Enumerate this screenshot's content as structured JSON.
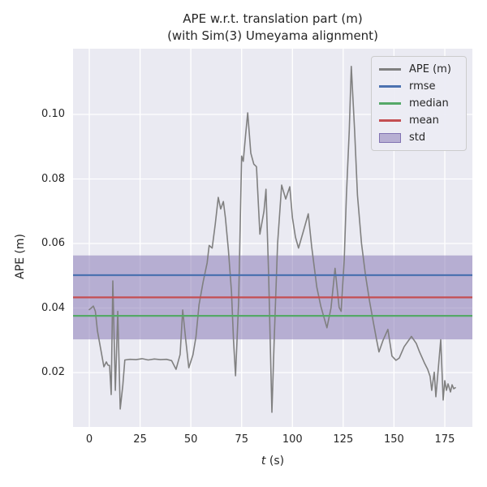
{
  "chart_data": {
    "type": "line",
    "title_line1": "APE w.r.t. translation part (m)",
    "title_line2": "(with Sim(3) Umeyama alignment)",
    "xlabel": "t (s)",
    "xlabel_parts": [
      "t",
      " (s)"
    ],
    "ylabel": "APE (m)",
    "xlim": [
      -8.0,
      188.6
    ],
    "ylim": [
      0.00315,
      0.12038
    ],
    "xticks": [
      0,
      25,
      50,
      75,
      100,
      125,
      150,
      175
    ],
    "xtick_labels": [
      "0",
      "25",
      "50",
      "75",
      "100",
      "125",
      "150",
      "175"
    ],
    "yticks": [
      0.02,
      0.04,
      0.06,
      0.08,
      0.1
    ],
    "ytick_labels": [
      "0.02",
      "0.04",
      "0.06",
      "0.08",
      "0.10"
    ],
    "grid": true,
    "legend_position": "upper right",
    "colors": {
      "ape_line": "#808080",
      "rmse": "#4c72b0",
      "median": "#55a868",
      "mean": "#c44e52",
      "std_band": "#8172b2",
      "axes_background": "#eaeaf2",
      "grid": "#ffffff"
    },
    "stats": {
      "rmse": 0.0502,
      "median": 0.0376,
      "mean": 0.0433,
      "std": 0.013
    },
    "stat_lines": [
      {
        "name": "rmse",
        "value": 0.0502,
        "color": "#4c72b0"
      },
      {
        "name": "median",
        "value": 0.0376,
        "color": "#55a868"
      },
      {
        "name": "mean",
        "value": 0.0433,
        "color": "#c44e52"
      }
    ],
    "std_band": {
      "lower": 0.0303,
      "upper": 0.0563,
      "color": "#8172b2",
      "opacity": 0.5
    },
    "legend": [
      {
        "label": "APE (m)",
        "type": "line",
        "color": "#808080"
      },
      {
        "label": "rmse",
        "type": "line",
        "color": "#4c72b0"
      },
      {
        "label": "median",
        "type": "line",
        "color": "#55a868"
      },
      {
        "label": "mean",
        "type": "line",
        "color": "#c44e52"
      },
      {
        "label": "std",
        "type": "patch",
        "color": "#8172b2"
      }
    ],
    "series": [
      {
        "name": "APE (m)",
        "color": "#808080",
        "points": [
          [
            0,
            0.0395
          ],
          [
            1,
            0.04
          ],
          [
            2,
            0.0406
          ],
          [
            3,
            0.039
          ],
          [
            4,
            0.033
          ],
          [
            5,
            0.0295
          ],
          [
            6,
            0.026
          ],
          [
            7.2,
            0.0218
          ],
          [
            8.4,
            0.0233
          ],
          [
            9.2,
            0.0223
          ],
          [
            10,
            0.0222
          ],
          [
            10.8,
            0.0132
          ],
          [
            11.6,
            0.0484
          ],
          [
            12.8,
            0.0145
          ],
          [
            14,
            0.039
          ],
          [
            15.2,
            0.0087
          ],
          [
            16.5,
            0.016
          ],
          [
            17.5,
            0.0239
          ],
          [
            20,
            0.0241
          ],
          [
            23,
            0.024
          ],
          [
            26,
            0.0243
          ],
          [
            29,
            0.0239
          ],
          [
            32,
            0.0242
          ],
          [
            35,
            0.024
          ],
          [
            38,
            0.0241
          ],
          [
            40.5,
            0.0237
          ],
          [
            42.7,
            0.021
          ],
          [
            44.7,
            0.0256
          ],
          [
            46,
            0.0394
          ],
          [
            47.5,
            0.03
          ],
          [
            49,
            0.0215
          ],
          [
            51,
            0.0255
          ],
          [
            52.5,
            0.031
          ],
          [
            54,
            0.041
          ],
          [
            56,
            0.048
          ],
          [
            58,
            0.054
          ],
          [
            59,
            0.0594
          ],
          [
            60.5,
            0.0586
          ],
          [
            62,
            0.066
          ],
          [
            63.5,
            0.0743
          ],
          [
            64.7,
            0.0707
          ],
          [
            66,
            0.073
          ],
          [
            67,
            0.068
          ],
          [
            68.5,
            0.058
          ],
          [
            70,
            0.045
          ],
          [
            71,
            0.03
          ],
          [
            72,
            0.019
          ],
          [
            73.5,
            0.042
          ],
          [
            75,
            0.0871
          ],
          [
            75.8,
            0.0855
          ],
          [
            77,
            0.094
          ],
          [
            78,
            0.1005
          ],
          [
            79.5,
            0.088
          ],
          [
            81,
            0.0846
          ],
          [
            82.3,
            0.0838
          ],
          [
            84,
            0.0629
          ],
          [
            86,
            0.07
          ],
          [
            87,
            0.0768
          ],
          [
            88.3,
            0.05
          ],
          [
            89.9,
            0.0077
          ],
          [
            91,
            0.03
          ],
          [
            92.7,
            0.06
          ],
          [
            94.7,
            0.0781
          ],
          [
            96.7,
            0.0738
          ],
          [
            98.7,
            0.0776
          ],
          [
            100,
            0.068
          ],
          [
            101.5,
            0.062
          ],
          [
            103,
            0.0586
          ],
          [
            105.5,
            0.064
          ],
          [
            107.8,
            0.0692
          ],
          [
            109.5,
            0.059
          ],
          [
            112,
            0.0465
          ],
          [
            114,
            0.0405
          ],
          [
            117,
            0.0339
          ],
          [
            119,
            0.04
          ],
          [
            121,
            0.0523
          ],
          [
            123,
            0.0402
          ],
          [
            124,
            0.039
          ],
          [
            125.5,
            0.055
          ],
          [
            126.6,
            0.075
          ],
          [
            128,
            0.095
          ],
          [
            129,
            0.1149
          ],
          [
            130.6,
            0.095
          ],
          [
            132,
            0.075
          ],
          [
            134,
            0.06
          ],
          [
            136,
            0.05
          ],
          [
            138,
            0.042
          ],
          [
            140,
            0.035
          ],
          [
            141.5,
            0.03
          ],
          [
            142.6,
            0.0264
          ],
          [
            144.6,
            0.03
          ],
          [
            147,
            0.0334
          ],
          [
            149,
            0.0251
          ],
          [
            151,
            0.0238
          ],
          [
            152.6,
            0.0245
          ],
          [
            155,
            0.028
          ],
          [
            158.6,
            0.0312
          ],
          [
            161,
            0.029
          ],
          [
            162.6,
            0.0264
          ],
          [
            165,
            0.023
          ],
          [
            166.6,
            0.021
          ],
          [
            167.8,
            0.0188
          ],
          [
            168.6,
            0.0145
          ],
          [
            169.8,
            0.0201
          ],
          [
            170.6,
            0.0125
          ],
          [
            171.8,
            0.0213
          ],
          [
            173,
            0.0302
          ],
          [
            174.2,
            0.0115
          ],
          [
            175,
            0.0175
          ],
          [
            175.8,
            0.0145
          ],
          [
            176.6,
            0.0165
          ],
          [
            177.8,
            0.014
          ],
          [
            178.6,
            0.0162
          ],
          [
            179.4,
            0.015
          ],
          [
            180.2,
            0.0153
          ]
        ]
      }
    ]
  }
}
